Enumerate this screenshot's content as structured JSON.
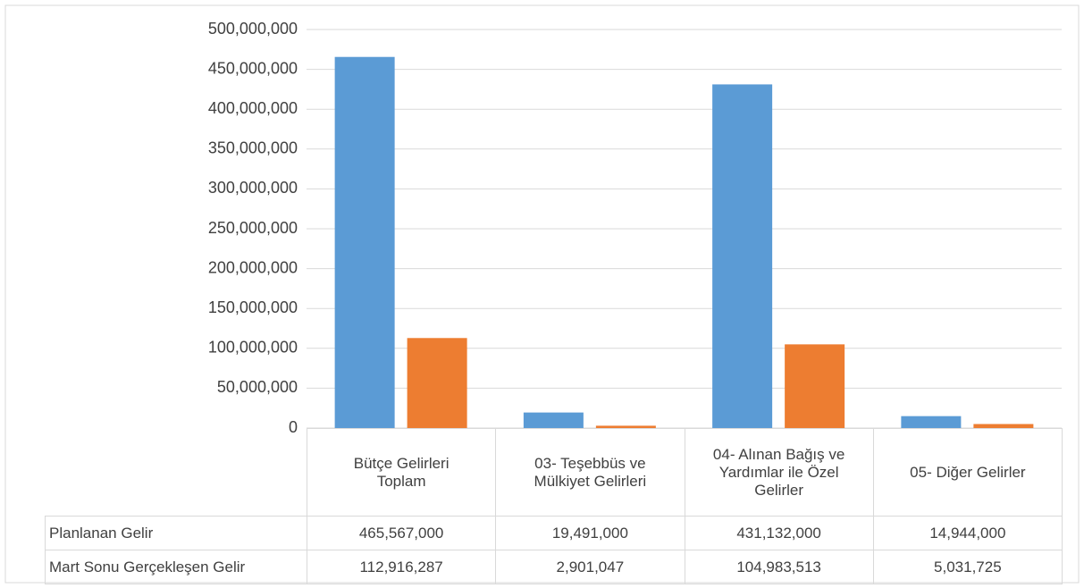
{
  "chart_data": {
    "type": "bar",
    "categories": [
      "Bütçe Gelirleri Toplam",
      "03- Teşebbüs ve Mülkiyet Gelirleri",
      "04- Alınan Bağış ve Yardımlar ile Özel Gelirler",
      "05- Diğer Gelirler"
    ],
    "series": [
      {
        "name": "Planlanan Gelir",
        "color": "#5b9bd5",
        "values": [
          465567000,
          19491000,
          431132000,
          14944000
        ],
        "value_labels": [
          "465,567,000",
          "19,491,000",
          "431,132,000",
          "14,944,000"
        ]
      },
      {
        "name": "Mart Sonu Gerçekleşen Gelir",
        "color": "#ed7d31",
        "values": [
          112916287,
          2901047,
          104983513,
          5031725
        ],
        "value_labels": [
          "112,916,287",
          "2,901,047",
          "104,983,513",
          "5,031,725"
        ]
      }
    ],
    "ylim": [
      0,
      500000000
    ],
    "yticks": [
      0,
      {
        "value": 50000000,
        "label": "50,000,000"
      },
      {
        "value": 100000000,
        "label": "100,000,000"
      },
      {
        "value": 150000000,
        "label": "150,000,000"
      },
      {
        "value": 200000000,
        "label": "200,000,000"
      },
      {
        "value": 250000000,
        "label": "250,000,000"
      },
      {
        "value": 300000000,
        "label": "300,000,000"
      },
      {
        "value": 350000000,
        "label": "350,000,000"
      },
      {
        "value": 400000000,
        "label": "400,000,000"
      },
      {
        "value": 450000000,
        "label": "450,000,000"
      },
      {
        "value": 500000000,
        "label": "500,000,000"
      }
    ],
    "grid": true
  }
}
